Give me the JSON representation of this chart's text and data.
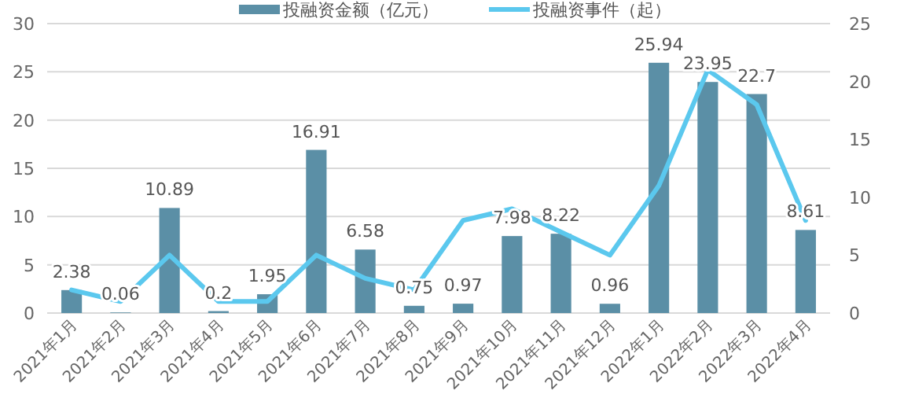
{
  "chart_data": {
    "type": "bar",
    "categories": [
      "2021年1月",
      "2021年2月",
      "2021年3月",
      "2021年4月",
      "2021年5月",
      "2021年6月",
      "2021年7月",
      "2021年8月",
      "2021年9月",
      "2021年10月",
      "2021年11月",
      "2021年12月",
      "2022年1月",
      "2022年2月",
      "2022年3月",
      "2022年4月"
    ],
    "series": [
      {
        "name": "投融资金额（亿元）",
        "color": "#5b8fa6",
        "values": [
          2.38,
          0.06,
          10.89,
          0.2,
          1.95,
          16.91,
          6.58,
          0.75,
          0.97,
          7.98,
          8.22,
          0.96,
          25.94,
          23.95,
          22.7,
          8.61
        ],
        "value_labels": [
          "2.38",
          "0.06",
          "10.89",
          "0.2",
          "1.95",
          "16.91",
          "6.58",
          "0.75",
          "0.97",
          "7.98",
          "8.22",
          "0.96",
          "25.94",
          "23.95",
          "22.7",
          "8.61"
        ]
      },
      {
        "name": "投融资事件（起）",
        "type": "line",
        "axis": "y2",
        "color": "#5bc8ee",
        "values": [
          2,
          1,
          5,
          1,
          1,
          5,
          3,
          2,
          8,
          9,
          7,
          5,
          11,
          21,
          18,
          8
        ]
      }
    ],
    "ylim": [
      0,
      30
    ],
    "yticks": [
      0,
      5,
      10,
      15,
      20,
      25,
      30
    ],
    "y2lim": [
      0,
      25
    ],
    "y2ticks": [
      0,
      5,
      10,
      15,
      20,
      25
    ],
    "grid": "y",
    "legend": "top",
    "marker": "none",
    "line_style": "solid"
  }
}
